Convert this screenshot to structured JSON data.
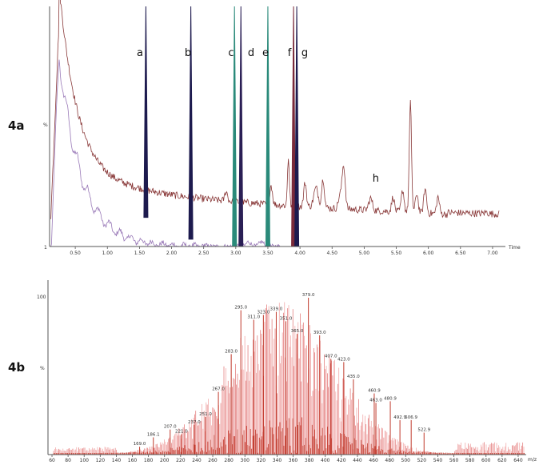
{
  "chart_data": [
    {
      "id": "4a",
      "type": "line",
      "panel_label": "4a",
      "xlabel": "Time",
      "ylabel": "%",
      "xlim": [
        0.1,
        7.2
      ],
      "ylim": [
        1,
        100
      ],
      "y_ticks": [
        "1"
      ],
      "x_ticks": [
        "0.50",
        "1.00",
        "1.50",
        "2.00",
        "2.50",
        "3.00",
        "3.50",
        "4.00",
        "4.50",
        "5.00",
        "5.50",
        "6.00",
        "6.50",
        "7.00"
      ],
      "x_tick_values": [
        0.5,
        1.0,
        1.5,
        2.0,
        2.5,
        3.0,
        3.5,
        4.0,
        4.5,
        5.0,
        5.5,
        6.0,
        6.5,
        7.0
      ],
      "peaks": [
        {
          "label": "a",
          "time": 1.6,
          "top": 100,
          "base": 13,
          "color": "#1d1a4e"
        },
        {
          "label": "b",
          "time": 2.3,
          "top": 100,
          "base": 4,
          "color": "#1d1a4e"
        },
        {
          "label": "c",
          "time": 2.98,
          "top": 100,
          "base": 1,
          "color": "#2a8a7a"
        },
        {
          "label": "d",
          "time": 3.08,
          "top": 100,
          "base": 1,
          "color": "#2a1f55"
        },
        {
          "label": "e",
          "time": 3.5,
          "top": 100,
          "base": 1,
          "color": "#2a8a7a"
        },
        {
          "label": "f",
          "time": 3.9,
          "top": 100,
          "base": 1,
          "color": "#7a2a3a"
        },
        {
          "label": "g",
          "time": 3.95,
          "top": 100,
          "base": 1,
          "color": "#1d1a4e"
        }
      ],
      "annotations": [
        {
          "label": "h",
          "time": 5.18
        }
      ],
      "series": [
        {
          "name": "total ion chromatogram",
          "color": "#8a3a3a"
        },
        {
          "name": "extracted ion trace",
          "color": "#9a7ab8"
        }
      ]
    },
    {
      "id": "4b",
      "type": "bar",
      "panel_label": "4b",
      "xlabel": "m/z",
      "ylabel": "%",
      "xlim": [
        55,
        650
      ],
      "ylim": [
        0,
        100
      ],
      "y_ticks": [
        "100"
      ],
      "x_ticks": [
        "60",
        "80",
        "100",
        "120",
        "140",
        "160",
        "180",
        "200",
        "220",
        "240",
        "260",
        "280",
        "300",
        "320",
        "340",
        "360",
        "380",
        "400",
        "420",
        "440",
        "460",
        "480",
        "500",
        "520",
        "540",
        "560",
        "580",
        "600",
        "620",
        "640"
      ],
      "x_tick_values": [
        60,
        80,
        100,
        120,
        140,
        160,
        180,
        200,
        220,
        240,
        260,
        280,
        300,
        320,
        340,
        360,
        380,
        400,
        420,
        440,
        460,
        480,
        500,
        520,
        540,
        560,
        580,
        600,
        620,
        640
      ],
      "labeled_peaks": [
        {
          "mz": 169.0,
          "label": "169.0",
          "intensity": 5
        },
        {
          "mz": 186.1,
          "label": "186.1",
          "intensity": 11
        },
        {
          "mz": 207.0,
          "label": "207.0",
          "intensity": 16
        },
        {
          "mz": 221.0,
          "label": "221.0",
          "intensity": 13
        },
        {
          "mz": 237.0,
          "label": "237.0",
          "intensity": 19
        },
        {
          "mz": 251.0,
          "label": "251.0",
          "intensity": 24
        },
        {
          "mz": 267.0,
          "label": "267.0",
          "intensity": 40
        },
        {
          "mz": 283.0,
          "label": "283.0",
          "intensity": 64
        },
        {
          "mz": 295.0,
          "label": "295.0",
          "intensity": 92
        },
        {
          "mz": 311.0,
          "label": "311.0",
          "intensity": 86
        },
        {
          "mz": 323.0,
          "label": "323.0",
          "intensity": 89
        },
        {
          "mz": 339.0,
          "label": "339.0",
          "intensity": 91
        },
        {
          "mz": 351.0,
          "label": "351.0",
          "intensity": 85
        },
        {
          "mz": 365.0,
          "label": "365.0",
          "intensity": 77
        },
        {
          "mz": 379.0,
          "label": "379.0",
          "intensity": 100
        },
        {
          "mz": 393.0,
          "label": "393.0",
          "intensity": 76
        },
        {
          "mz": 407.0,
          "label": "407.0",
          "intensity": 61
        },
        {
          "mz": 423.0,
          "label": "423.0",
          "intensity": 59
        },
        {
          "mz": 435.0,
          "label": "435.0",
          "intensity": 48
        },
        {
          "mz": 460.9,
          "label": "460.9",
          "intensity": 39
        },
        {
          "mz": 463.0,
          "label": "463.0",
          "intensity": 33
        },
        {
          "mz": 480.9,
          "label": "480.9",
          "intensity": 34
        },
        {
          "mz": 492.9,
          "label": "492.9",
          "intensity": 22
        },
        {
          "mz": 506.9,
          "label": "506.9",
          "intensity": 22
        },
        {
          "mz": 522.9,
          "label": "522.9",
          "intensity": 14
        }
      ],
      "series": [
        {
          "name": "mass spectrum",
          "color": "#d9534f"
        }
      ]
    }
  ]
}
